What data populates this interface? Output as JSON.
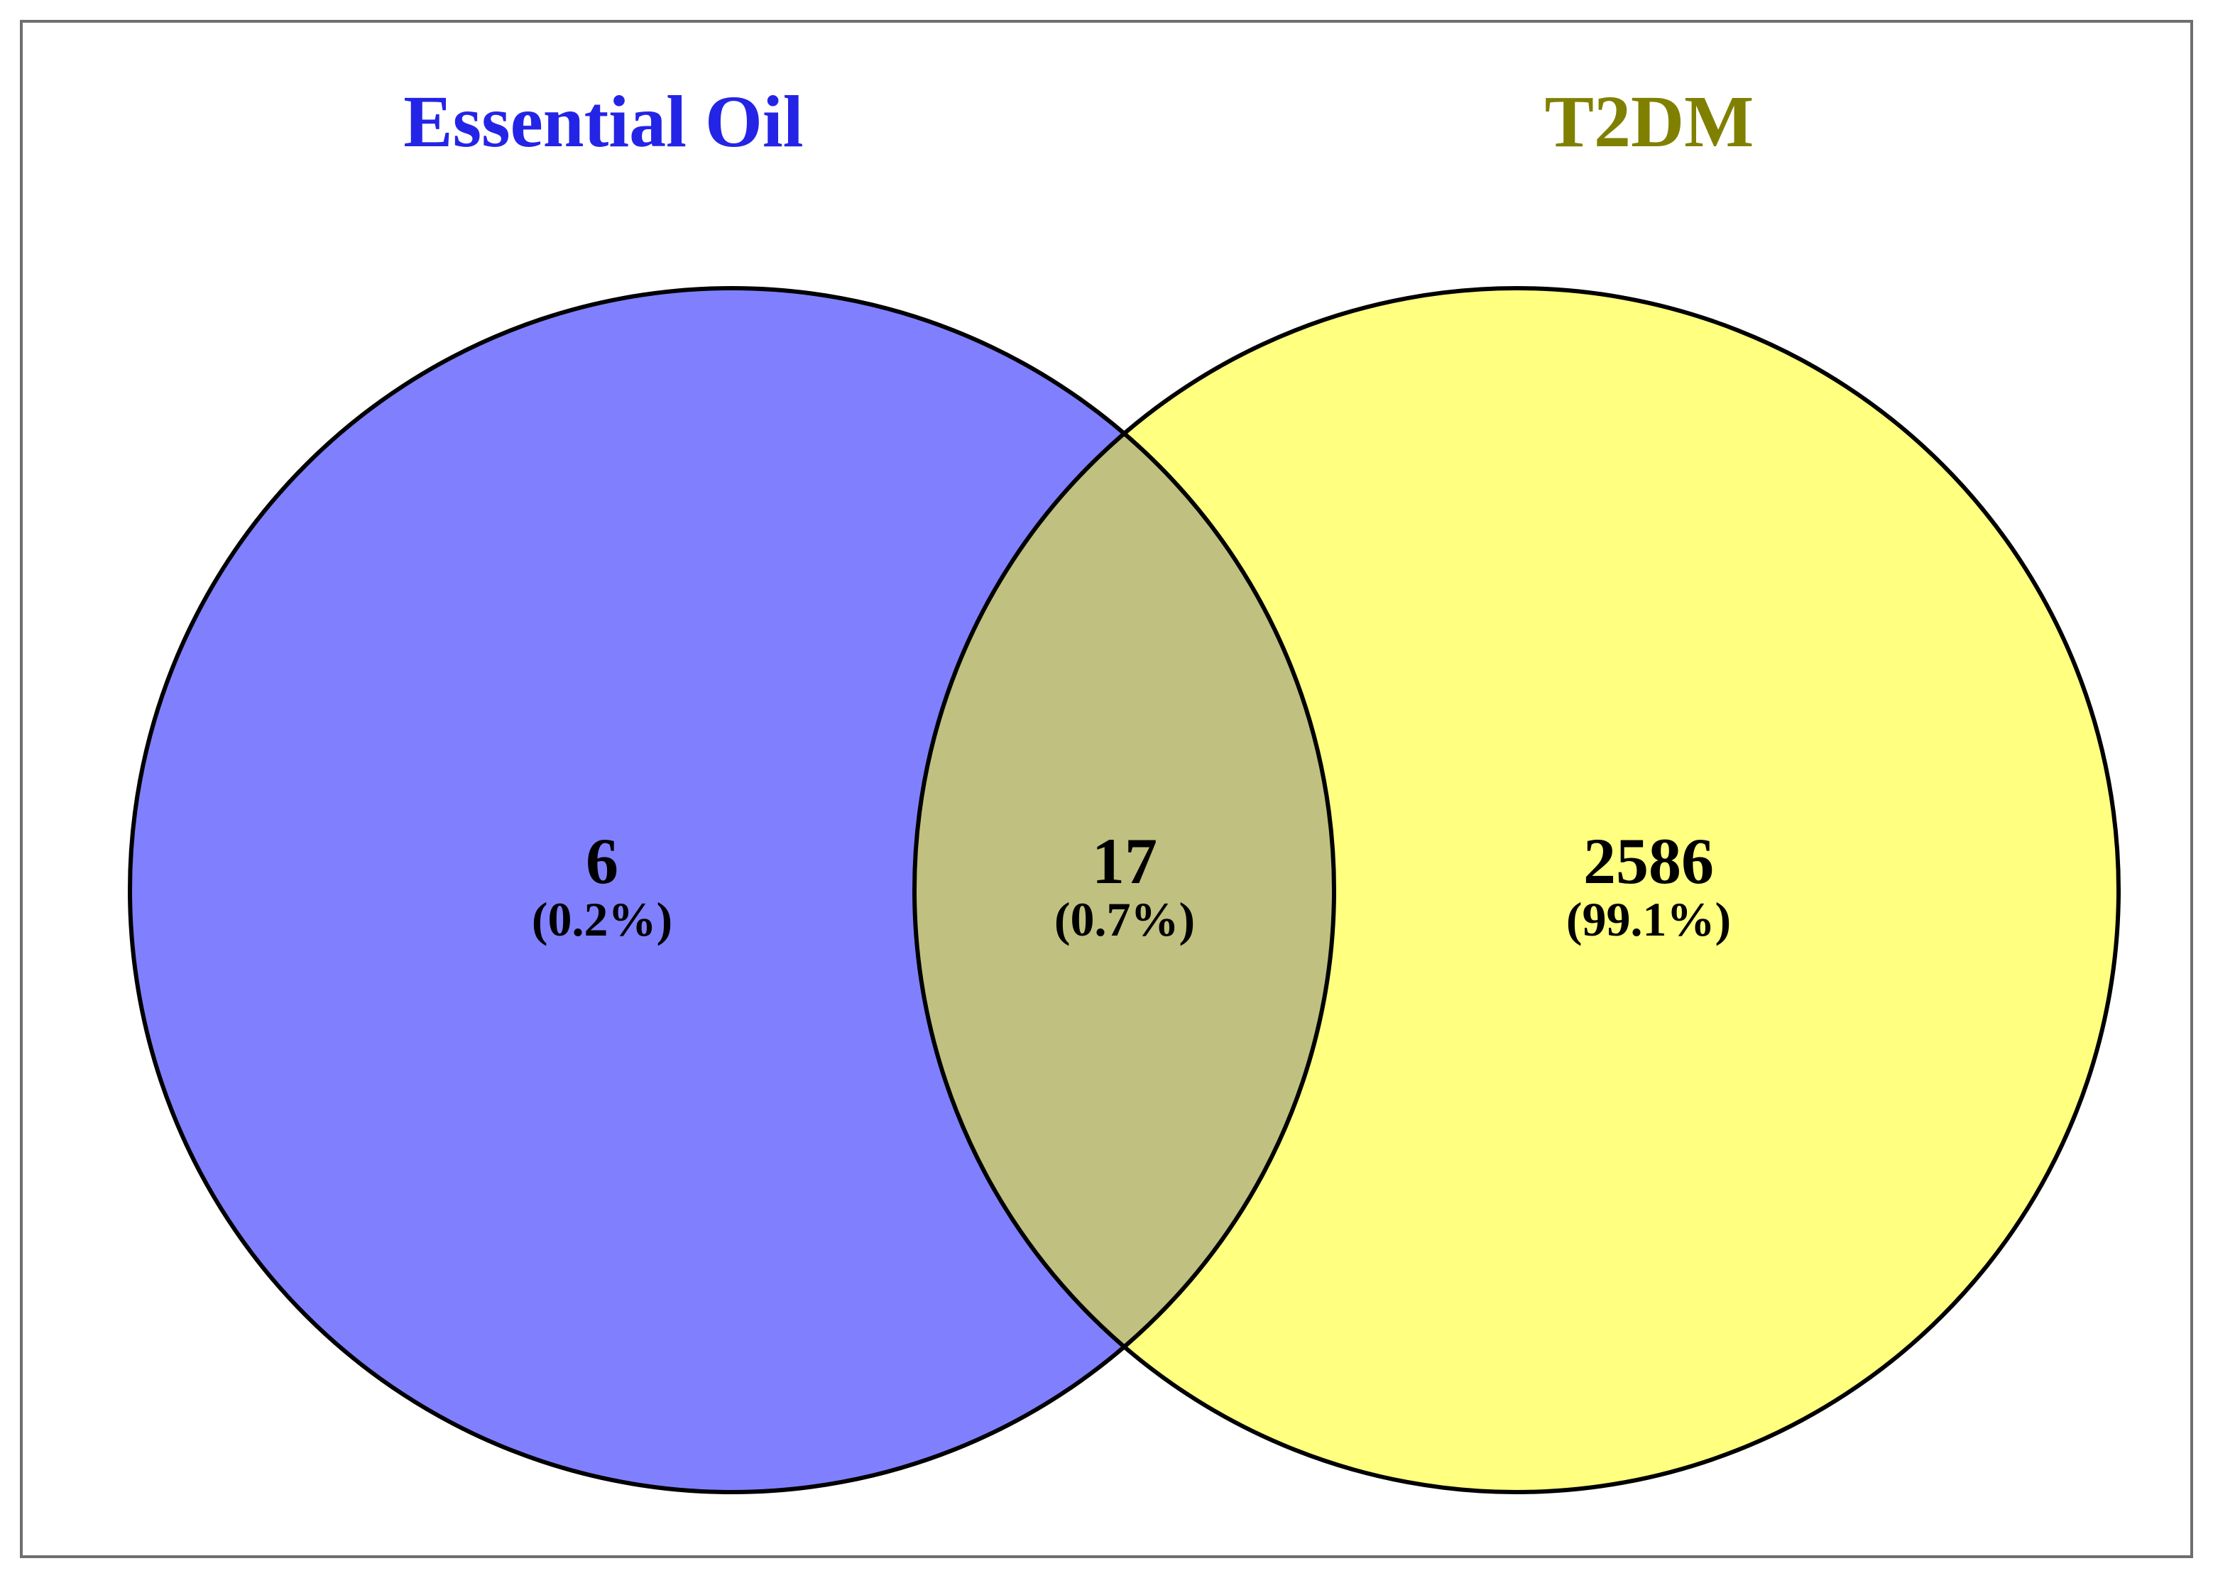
{
  "sets": [
    {
      "name": "Essential Oil",
      "color": "#8080ff",
      "label_color": "#2424e6"
    },
    {
      "name": "T2DM",
      "color": "#ffff80",
      "label_color": "#808000"
    }
  ],
  "overlap_color": "#c0c080",
  "regions": {
    "left_only": {
      "count": "6",
      "percent": "(0.2%)"
    },
    "intersection": {
      "count": "17",
      "percent": "(0.7%)"
    },
    "right_only": {
      "count": "2586",
      "percent": "(99.1%)"
    }
  }
}
